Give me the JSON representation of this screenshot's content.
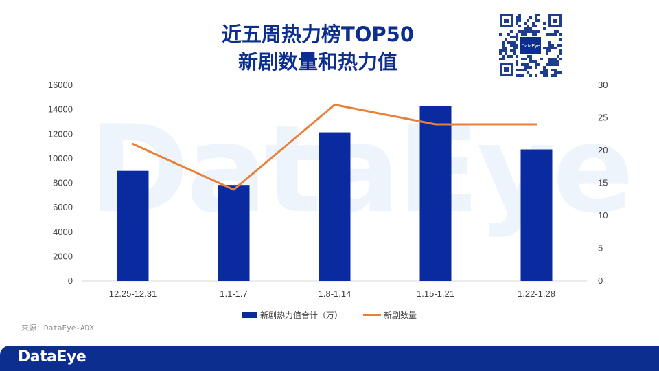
{
  "header": {
    "title_line1": "近五周热力榜TOP50",
    "title_line2": "新剧数量和热力值"
  },
  "qr": {
    "brand": "DataEye",
    "icon": "qr-code-icon"
  },
  "watermark": {
    "text": "DataEye"
  },
  "source": "来源：DataEye-ADX",
  "footer": {
    "logo": "DataEye"
  },
  "colors": {
    "bar": "#0a2aa0",
    "line": "#e8803a",
    "brand": "#0c2f8f"
  },
  "chart_data": {
    "type": "bar+line",
    "categories": [
      "12.25-12.31",
      "1.1-1.7",
      "1.8-1.14",
      "1.15-1.21",
      "1.22-1.28"
    ],
    "series": [
      {
        "name": "新剧热力值合计（万）",
        "type": "bar",
        "axis": "left",
        "values": [
          9000,
          7850,
          12150,
          14300,
          10750
        ]
      },
      {
        "name": "新剧数量",
        "type": "line",
        "axis": "right",
        "values": [
          21,
          14,
          27,
          24,
          24
        ]
      }
    ],
    "y_left": {
      "min": 0,
      "max": 16000,
      "ticks": [
        "0",
        "2000",
        "4000",
        "6000",
        "8000",
        "10000",
        "12000",
        "14000",
        "16000"
      ]
    },
    "y_right": {
      "min": 0,
      "max": 30,
      "ticks": [
        "0",
        "5",
        "10",
        "15",
        "20",
        "25",
        "30"
      ]
    },
    "grid": false,
    "legend_position": "bottom"
  }
}
